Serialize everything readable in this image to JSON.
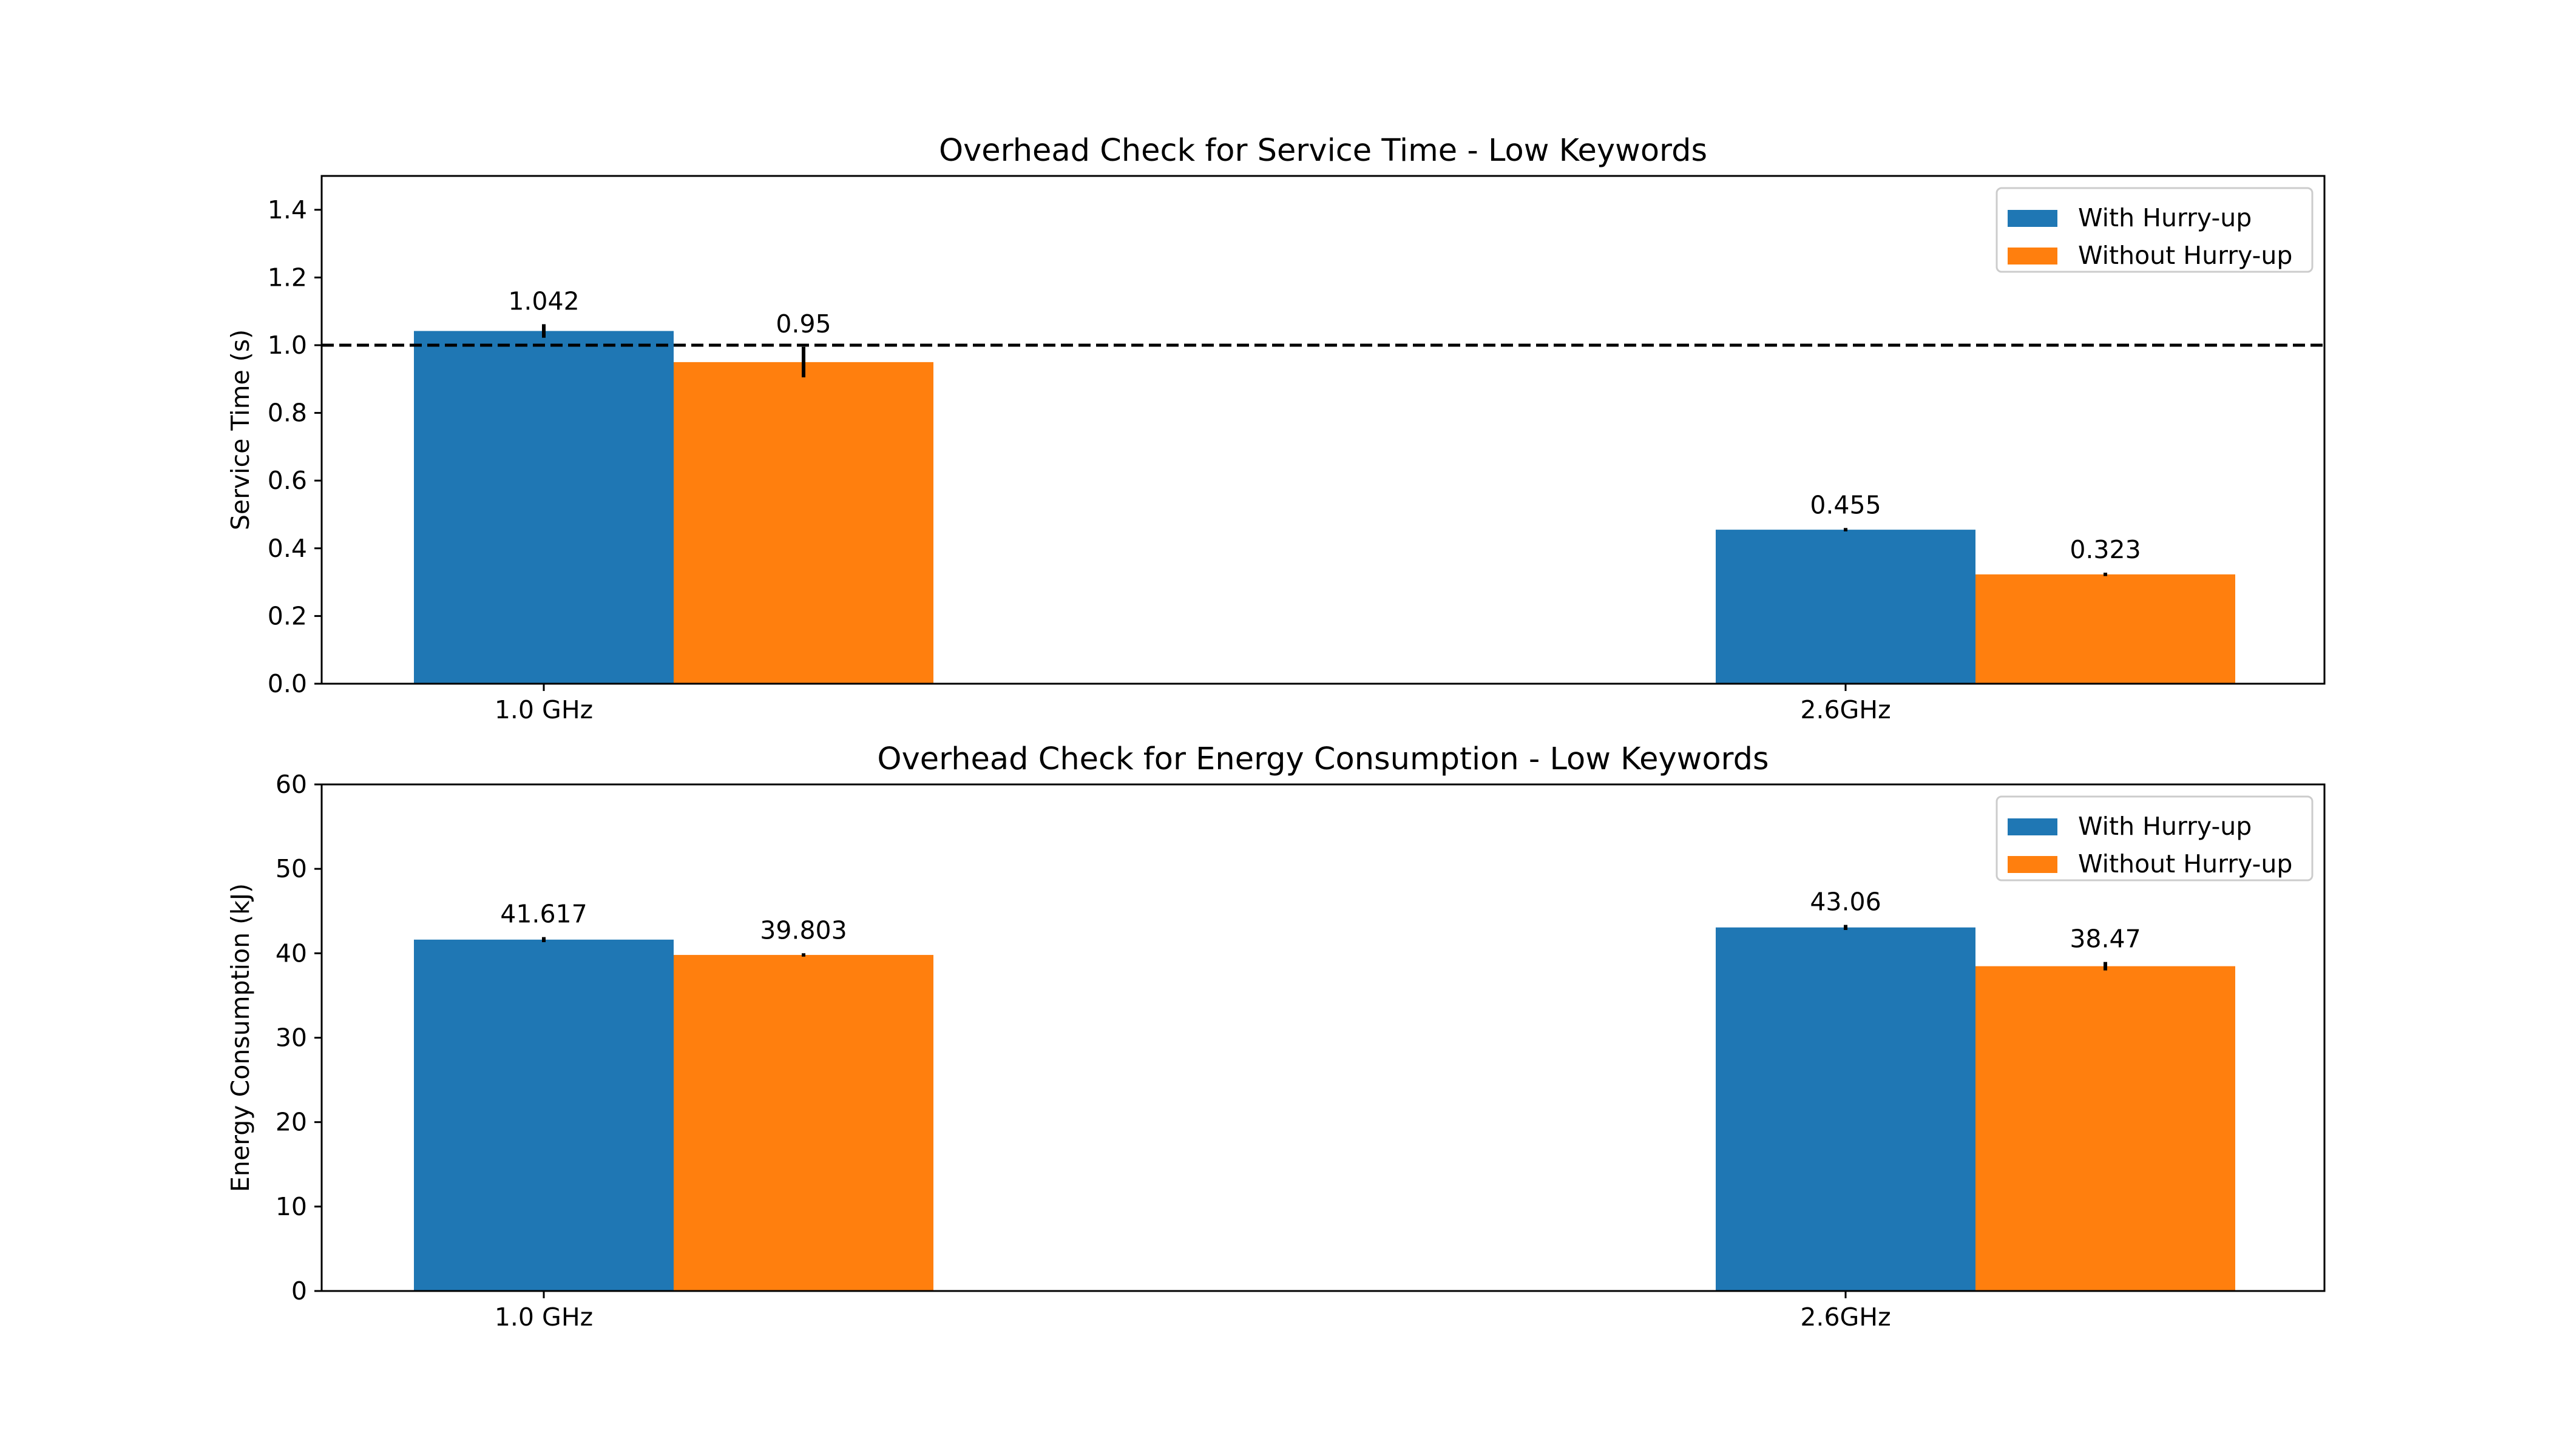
{
  "chart_data": [
    {
      "type": "bar",
      "title": "Overhead Check for Service Time - Low Keywords",
      "xlabel": "",
      "ylabel": "Service Time (s)",
      "categories": [
        "1.0 GHz",
        "2.6GHz"
      ],
      "ylim": [
        0,
        1.5
      ],
      "yticks": [
        "0.0",
        "0.2",
        "0.4",
        "0.6",
        "0.8",
        "1.0",
        "1.2",
        "1.4"
      ],
      "reference_line": 1.0,
      "legend_position": "top-right",
      "series": [
        {
          "name": "With Hurry-up",
          "color": "#1f77b4",
          "values": [
            1.042,
            0.455
          ],
          "errors": [
            0.02,
            0.005
          ],
          "labels": [
            "1.042",
            "0.455"
          ]
        },
        {
          "name": "Without Hurry-up",
          "color": "#ff7f0e",
          "values": [
            0.95,
            0.323
          ],
          "errors": [
            0.045,
            0.005
          ],
          "labels": [
            "0.95",
            "0.323"
          ]
        }
      ]
    },
    {
      "type": "bar",
      "title": "Overhead Check for Energy Consumption - Low Keywords",
      "xlabel": "",
      "ylabel": "Energy Consumption (kJ)",
      "categories": [
        "1.0 GHz",
        "2.6GHz"
      ],
      "ylim": [
        0,
        60
      ],
      "yticks": [
        "0",
        "10",
        "20",
        "30",
        "40",
        "50",
        "60"
      ],
      "legend_position": "top-right",
      "series": [
        {
          "name": "With Hurry-up",
          "color": "#1f77b4",
          "values": [
            41.617,
            43.06
          ],
          "errors": [
            0.3,
            0.3
          ],
          "labels": [
            "41.617",
            "43.06"
          ]
        },
        {
          "name": "Without Hurry-up",
          "color": "#ff7f0e",
          "values": [
            39.803,
            38.47
          ],
          "errors": [
            0.2,
            0.5
          ],
          "labels": [
            "39.803",
            "38.47"
          ]
        }
      ]
    }
  ]
}
